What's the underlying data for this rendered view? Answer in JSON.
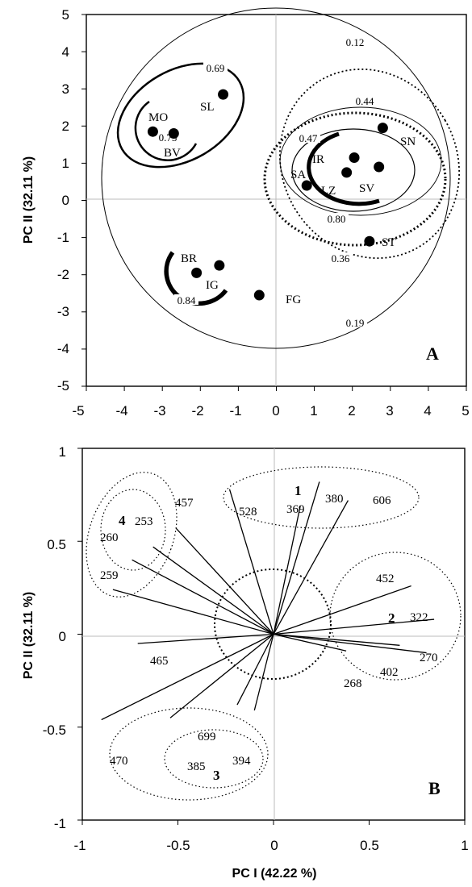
{
  "chart_data": [
    {
      "type": "scatter",
      "panel_label": "A",
      "xlabel": "",
      "ylabel": "PC II (32.11 %)",
      "xlim": [
        -5,
        5
      ],
      "ylim": [
        -5,
        5
      ],
      "x_ticks": [
        "-5",
        "-4",
        "-3",
        "-2",
        "-1",
        "0",
        "1",
        "2",
        "3",
        "4",
        "5"
      ],
      "y_ticks": [
        "5",
        "4",
        "3",
        "2",
        "1",
        "0",
        "-1",
        "-2",
        "-3",
        "-4",
        "-5"
      ],
      "points": [
        {
          "label": "MO",
          "x": -3.25,
          "y": 1.85
        },
        {
          "label": "BV",
          "x": -2.7,
          "y": 1.8
        },
        {
          "label": "SL",
          "x": -1.4,
          "y": 2.85
        },
        {
          "label": "BR",
          "x": -2.1,
          "y": -1.95
        },
        {
          "label": "IG",
          "x": -1.5,
          "y": -1.75
        },
        {
          "label": "FG",
          "x": -0.45,
          "y": -2.55
        },
        {
          "label": "SN",
          "x": 2.8,
          "y": 1.95
        },
        {
          "label": "IR",
          "x": 2.05,
          "y": 1.15
        },
        {
          "label": "LZ",
          "x": 1.85,
          "y": 0.75
        },
        {
          "label": "SV",
          "x": 2.7,
          "y": 0.9
        },
        {
          "label": "SA",
          "x": 0.8,
          "y": 0.4
        },
        {
          "label": "ST",
          "x": 2.45,
          "y": -1.1
        }
      ],
      "cluster_similarities": [
        "0.12",
        "0.69",
        "0.75",
        "0.44",
        "0.47",
        "0.80",
        "0.84",
        "0.36",
        "0.19"
      ]
    },
    {
      "type": "scatter",
      "panel_label": "B",
      "xlabel": "PC I (42.22 %)",
      "ylabel": "PC II (32.11 %)",
      "xlim": [
        -1,
        1
      ],
      "ylim": [
        -1,
        1
      ],
      "x_ticks": [
        "-1",
        "-0.5",
        "0",
        "0.5",
        "1"
      ],
      "y_ticks": [
        "1",
        "0.5",
        "0",
        "-0.5",
        "-1"
      ],
      "loadings": [
        {
          "label": "528",
          "x": -0.23,
          "y": 0.78
        },
        {
          "label": "369",
          "x": 0.14,
          "y": 0.69
        },
        {
          "label": "380",
          "x": 0.24,
          "y": 0.82
        },
        {
          "label": "606",
          "x": 0.39,
          "y": 0.72
        },
        {
          "label": "457",
          "x": -0.51,
          "y": 0.57
        },
        {
          "label": "253",
          "x": -0.63,
          "y": 0.47
        },
        {
          "label": "260",
          "x": -0.74,
          "y": 0.4
        },
        {
          "label": "259",
          "x": -0.84,
          "y": 0.24
        },
        {
          "label": "452",
          "x": 0.72,
          "y": 0.26
        },
        {
          "label": "322",
          "x": 0.84,
          "y": 0.08
        },
        {
          "label": "270",
          "x": 0.8,
          "y": -0.1
        },
        {
          "label": "402",
          "x": 0.66,
          "y": -0.06
        },
        {
          "label": "268",
          "x": 0.38,
          "y": -0.09
        },
        {
          "label": "465",
          "x": -0.71,
          "y": -0.05
        },
        {
          "label": "470",
          "x": -0.9,
          "y": -0.46
        },
        {
          "label": "385",
          "x": -0.54,
          "y": -0.45
        },
        {
          "label": "699",
          "x": -0.19,
          "y": -0.38
        },
        {
          "label": "394",
          "x": -0.1,
          "y": -0.41
        }
      ],
      "groups": [
        "1",
        "2",
        "3",
        "4"
      ]
    }
  ]
}
